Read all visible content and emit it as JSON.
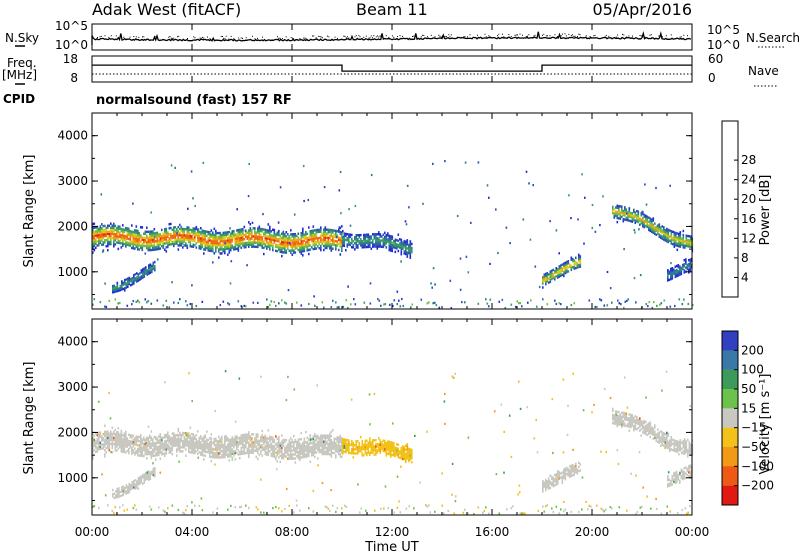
{
  "header": {
    "station": "Adak West (fitACF)",
    "beam": "Beam 11",
    "date": "05/Apr/2016"
  },
  "strip_labels": {
    "nsky": "N.Sky",
    "nsearch": "N.Search",
    "freq": "Freq.",
    "freq_unit": "[MHz]",
    "nave": "Nave",
    "cpid": "CPID",
    "cpid_value": "normalsound (fast) 157 RF",
    "noise_ticks_left": [
      "10^5",
      "10^0"
    ],
    "noise_ticks_right": [
      "10^5",
      "10^0"
    ],
    "freq_ticks_left": [
      "18",
      "8"
    ],
    "nave_ticks_right": [
      "60",
      "0"
    ]
  },
  "axes": {
    "ylabel": "Slant Range [km]",
    "xlabel": "Time UT",
    "x_ticks": [
      "00:00",
      "04:00",
      "08:00",
      "12:00",
      "16:00",
      "20:00",
      "00:00"
    ],
    "y_ticks": [
      "1000",
      "2000",
      "3000",
      "4000"
    ]
  },
  "colorbars": {
    "power": {
      "title": "Power [dB]",
      "ticks": [
        "4",
        "8",
        "12",
        "16",
        "20",
        "24",
        "28"
      ],
      "colors": [
        "#1f2ad8",
        "#2c4fb8",
        "#2f7a8e",
        "#3a9a6a",
        "#6fbd48",
        "#d7cf1f",
        "#f2a218",
        "#ef6a14",
        "#e02a14"
      ]
    },
    "velocity": {
      "title": "Velocity [m s⁻¹]",
      "ticks": [
        "200",
        "100",
        "50",
        "15",
        "−15",
        "−50",
        "−100",
        "−200"
      ],
      "colors": [
        "#3040c0",
        "#3a78a8",
        "#3c9a5a",
        "#6cc24a",
        "#c8c8c0",
        "#f2c21a",
        "#f29a18",
        "#ee5a16",
        "#e01a12"
      ]
    }
  },
  "chart_data": [
    {
      "type": "heatmap",
      "name": "power",
      "xlabel": "Time UT",
      "ylabel": "Slant Range [km]",
      "xlim": [
        0,
        24
      ],
      "ylim": [
        180,
        4500
      ],
      "z_label": "Power [dB]",
      "zlim": [
        0,
        30
      ],
      "features": [
        {
          "t_start": 0.0,
          "t_end": 10.0,
          "range_center_start": 1750,
          "range_center_end": 1650,
          "width_km": 450,
          "peak_db": 27
        },
        {
          "t_start": 10.0,
          "t_end": 12.8,
          "range_center_start": 1750,
          "range_center_end": 1500,
          "width_km": 300,
          "peak_db": 12
        },
        {
          "t_start": 0.8,
          "t_end": 2.5,
          "range_center_start": 650,
          "range_center_end": 1050,
          "width_km": 200,
          "peak_db": 12
        },
        {
          "t_start": 18.0,
          "t_end": 19.5,
          "range_center_start": 850,
          "range_center_end": 1150,
          "width_km": 250,
          "peak_db": 22
        },
        {
          "t_start": 20.8,
          "t_end": 24.0,
          "range_center_start": 2350,
          "range_center_end": 1600,
          "width_km": 300,
          "peak_db": 20
        },
        {
          "t_start": 23.0,
          "t_end": 24.0,
          "range_center_start": 950,
          "range_center_end": 1100,
          "width_km": 250,
          "peak_db": 10
        }
      ]
    },
    {
      "type": "heatmap",
      "name": "velocity",
      "xlabel": "Time UT",
      "ylabel": "Slant Range [km]",
      "xlim": [
        0,
        24
      ],
      "ylim": [
        180,
        4500
      ],
      "z_label": "Velocity [m s⁻¹]",
      "zlim": [
        -250,
        250
      ],
      "features": [
        {
          "t_start": 0.0,
          "t_end": 10.0,
          "range_center_start": 1750,
          "range_center_end": 1650,
          "width_km": 450,
          "velocity": 0
        },
        {
          "t_start": 10.0,
          "t_end": 12.8,
          "range_center_start": 1750,
          "range_center_end": 1500,
          "width_km": 300,
          "velocity": -40
        },
        {
          "t_start": 0.8,
          "t_end": 2.5,
          "range_center_start": 650,
          "range_center_end": 1050,
          "width_km": 200,
          "velocity": 0
        },
        {
          "t_start": 18.0,
          "t_end": 19.5,
          "range_center_start": 850,
          "range_center_end": 1150,
          "width_km": 250,
          "velocity": 0
        },
        {
          "t_start": 20.8,
          "t_end": 24.0,
          "range_center_start": 2350,
          "range_center_end": 1600,
          "width_km": 300,
          "velocity": 0
        },
        {
          "t_start": 23.0,
          "t_end": 24.0,
          "range_center_start": 950,
          "range_center_end": 1100,
          "width_km": 250,
          "velocity": 0
        }
      ]
    },
    {
      "type": "line",
      "name": "frequency",
      "ylabel": "Freq. [MHz]",
      "ylim": [
        8,
        18
      ],
      "x": [
        0,
        10,
        10,
        18,
        18,
        24
      ],
      "values": [
        14.5,
        14.5,
        12.2,
        12.2,
        14.5,
        14.5
      ]
    }
  ]
}
